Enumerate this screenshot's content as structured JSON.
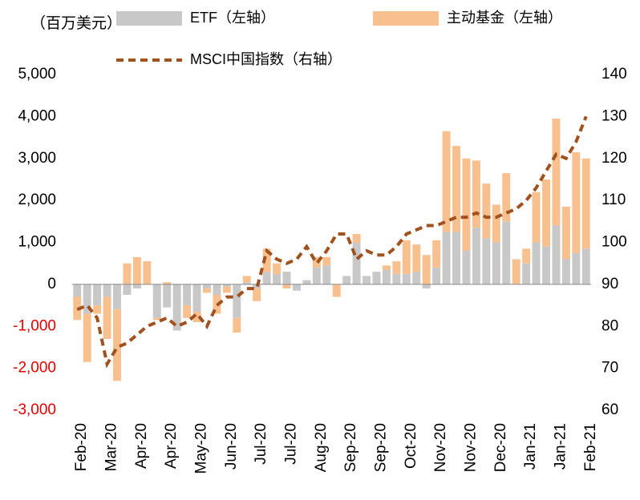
{
  "chart_data": {
    "type": "bar_line",
    "y_label": "（百万美元）",
    "categories": [
      "Feb-20",
      null,
      null,
      "Mar-20",
      null,
      null,
      "Apr-20",
      null,
      null,
      "Apr-20",
      null,
      null,
      "May-20",
      null,
      null,
      "Jun-20",
      null,
      null,
      "Jul-20",
      null,
      null,
      "Jul-20",
      null,
      null,
      "Aug-20",
      null,
      null,
      "Sep-20",
      null,
      null,
      "Sep-20",
      null,
      null,
      "Oct-20",
      null,
      null,
      "Nov-20",
      null,
      null,
      "Nov-20",
      null,
      null,
      "Dec-20",
      null,
      null,
      "Jan-21",
      null,
      null,
      "Jan-21",
      null,
      null,
      "Feb-21"
    ],
    "series": [
      {
        "name": "ETF（左轴）",
        "color": "#c8c8c8",
        "kind": "bar",
        "values": [
          -300,
          -700,
          -500,
          -300,
          -600,
          -250,
          -100,
          0,
          -800,
          -550,
          -1100,
          -500,
          -650,
          -100,
          -250,
          -50,
          -800,
          50,
          -100,
          300,
          250,
          300,
          -150,
          100,
          400,
          450,
          0,
          200,
          1000,
          200,
          300,
          350,
          250,
          250,
          300,
          -100,
          400,
          1250,
          1250,
          800,
          1350,
          1100,
          1000,
          1500,
          0,
          500,
          1000,
          900,
          1400,
          600,
          750,
          850
        ]
      },
      {
        "name": "主动基金（左轴）",
        "color": "#f9c08f",
        "kind": "bar",
        "values": [
          -550,
          -1150,
          -200,
          -1000,
          -1700,
          500,
          650,
          550,
          -50,
          50,
          0,
          -300,
          -250,
          -100,
          -450,
          -150,
          -350,
          150,
          -300,
          550,
          250,
          -100,
          0,
          0,
          250,
          200,
          -300,
          0,
          200,
          0,
          0,
          100,
          300,
          800,
          650,
          700,
          650,
          2400,
          2050,
          2200,
          1600,
          1300,
          900,
          1150,
          600,
          350,
          1200,
          1600,
          2550,
          1250,
          2400,
          2150
        ]
      },
      {
        "name": "MSCI中国指数（右轴）",
        "color": "#a0521e",
        "kind": "line",
        "axis": "y2",
        "values": [
          84,
          85,
          82,
          71,
          75,
          76,
          78,
          80,
          81,
          82,
          80,
          81,
          83,
          80,
          85,
          87,
          87,
          89,
          89,
          98,
          96,
          95,
          96,
          99,
          95,
          98,
          102,
          102,
          96,
          98,
          97,
          97,
          99,
          102,
          103,
          104,
          104,
          105,
          106,
          106,
          107,
          106,
          106,
          107,
          108,
          110,
          113,
          117,
          121,
          120,
          124,
          130
        ]
      }
    ],
    "ylim": [
      -3000,
      5000
    ],
    "yticks": [
      {
        "value": 5000,
        "label": "5,000"
      },
      {
        "value": 4000,
        "label": "4,000"
      },
      {
        "value": 3000,
        "label": "3,000"
      },
      {
        "value": 2000,
        "label": "2,000"
      },
      {
        "value": 1000,
        "label": "1,000"
      },
      0,
      {
        "value": -1000,
        "label": "-1,000"
      },
      {
        "value": -2000,
        "label": "-2,000"
      },
      {
        "value": -3000,
        "label": "-3,000"
      }
    ],
    "y2lim": [
      60,
      140
    ],
    "y2ticks": [
      140,
      130,
      120,
      110,
      100,
      90,
      80,
      70,
      60
    ],
    "negative_tick_color": "#e00000",
    "grid": false
  }
}
